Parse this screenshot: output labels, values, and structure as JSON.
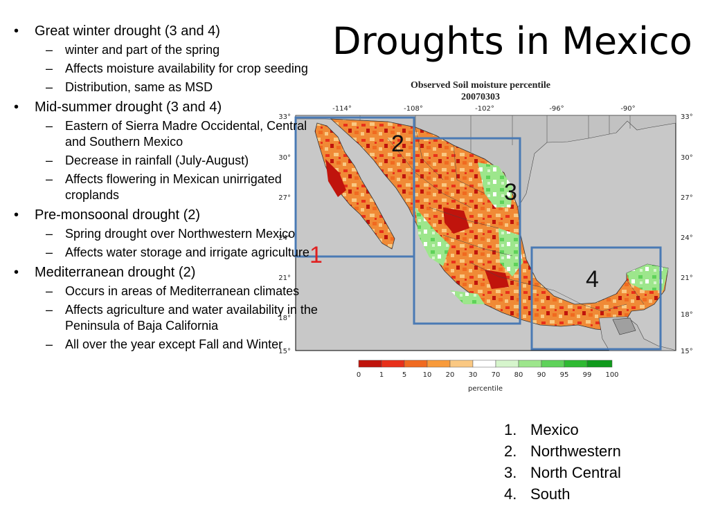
{
  "slide": {
    "title": "Droughts in Mexico",
    "bullets": [
      {
        "text": "Great winter drought (3 and 4)",
        "sub": [
          "winter and part of the spring",
          "Affects moisture availability for crop seeding",
          "Distribution, same as MSD"
        ]
      },
      {
        "text": "Mid-summer drought (3 and 4)",
        "sub": [
          "Eastern of Sierra Madre Occidental, Central and Southern Mexico",
          "Decrease in rainfall (July-August)",
          "Affects flowering in Mexican unirrigated croplands"
        ]
      },
      {
        "text": "Pre-monsoonal drought (2)",
        "sub": [
          "Spring drought over Northwestern Mexico",
          "Affects water storage and irrigate agriculture"
        ]
      },
      {
        "text": "Mediterranean drought (2)",
        "sub": [
          "Occurs in areas of Mediterranean climates",
          "Affects agriculture and water availability in the Peninsula of Baja California",
          "All over the year except Fall and Winter"
        ]
      }
    ],
    "bullet_symbol": "•",
    "sub_symbol": "–",
    "regions": [
      {
        "num": "1.",
        "name": "Mexico"
      },
      {
        "num": "2.",
        "name": "Northwestern"
      },
      {
        "num": "3.",
        "name": "North Central"
      },
      {
        "num": "4.",
        "name": "South"
      }
    ]
  },
  "map": {
    "title": "Observed Soil moisture percentile",
    "date": "20070303",
    "lon_labels": [
      "-114°",
      "-108°",
      "-102°",
      "-96°",
      "-90°"
    ],
    "lat_labels": [
      "33°",
      "30°",
      "27°",
      "24°",
      "21°",
      "18°",
      "15°"
    ],
    "box_labels": [
      "1",
      "2",
      "3",
      "4"
    ],
    "colorbar": {
      "ticks": [
        "0",
        "1",
        "5",
        "10",
        "20",
        "30",
        "70",
        "80",
        "90",
        "95",
        "99",
        "100"
      ],
      "colors": [
        "#c0140c",
        "#e8301a",
        "#f06a20",
        "#f89a3a",
        "#fac882",
        "#ffffff",
        "#d6f5cc",
        "#9de68c",
        "#5fd25a",
        "#2fba32",
        "#109a1c"
      ],
      "label": "percentile"
    },
    "box_color": "#4a7ab4",
    "label1_color": "#e02020",
    "land_base": "#f08a36"
  }
}
